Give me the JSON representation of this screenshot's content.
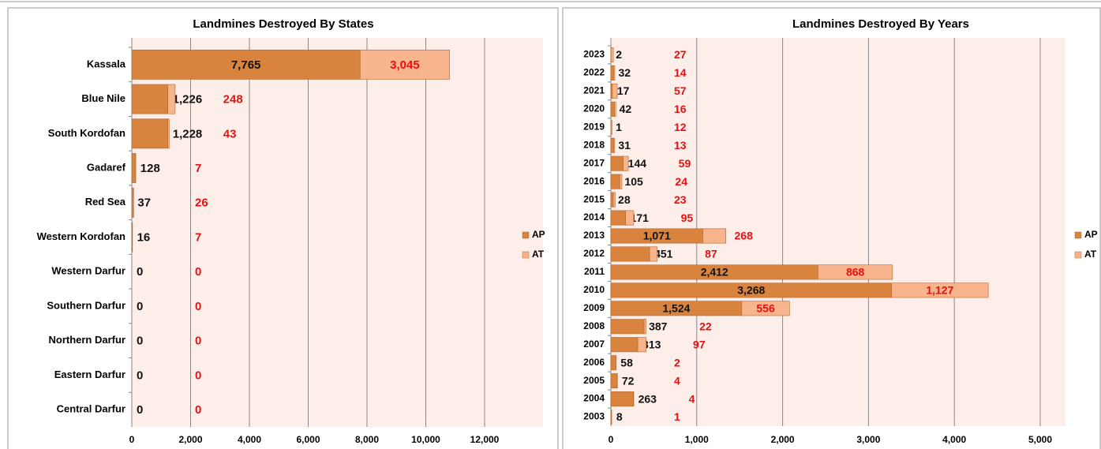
{
  "chart_data": [
    {
      "type": "stacked_bar_h",
      "title": "Landmines  Destroyed By States",
      "categories": [
        "Kassala",
        "Blue Nile",
        "South Kordofan",
        "Gadaref",
        "Red Sea",
        "Western Kordofan",
        "Western Darfur",
        "Southern Darfur",
        "Northern Darfur",
        "Eastern Darfur",
        "Central Darfur"
      ],
      "series": [
        {
          "name": "AP",
          "color": "#d9843e",
          "values": [
            7765,
            1226,
            1228,
            128,
            37,
            16,
            0,
            0,
            0,
            0,
            0
          ],
          "value_labels": [
            "7,765",
            "1,226",
            "1,228",
            "128",
            "37",
            "16",
            "0",
            "0",
            "0",
            "0",
            "0"
          ]
        },
        {
          "name": "AT",
          "color": "#f8b48c",
          "values": [
            3045,
            248,
            43,
            7,
            26,
            7,
            0,
            0,
            0,
            0,
            0
          ],
          "value_labels": [
            "3,045",
            "248",
            "43",
            "7",
            "26",
            "7",
            "0",
            "0",
            "0",
            "0",
            "0"
          ]
        }
      ],
      "xlim": [
        0,
        12000
      ],
      "xticks": [
        0,
        {
          "value": 2000,
          "label": "2,000"
        },
        {
          "value": 4000,
          "label": "4,000"
        },
        {
          "value": 6000,
          "label": "6,000"
        },
        {
          "value": 8000,
          "label": "8,000"
        },
        {
          "value": 10000,
          "label": "10,000"
        },
        {
          "value": 12000,
          "label": "12,000"
        }
      ],
      "grid": true,
      "legend": "right"
    },
    {
      "type": "stacked_bar_h",
      "title": "Landmines  Destroyed By Years",
      "categories": [
        "2023",
        "2022",
        "2021",
        "2020",
        "2019",
        "2018",
        "2017",
        "2016",
        "2015",
        "2014",
        "2013",
        "2012",
        "2011",
        "2010",
        "2009",
        "2008",
        "2007",
        "2006",
        "2005",
        "2004",
        "2003"
      ],
      "series": [
        {
          "name": "AP",
          "color": "#d9843e",
          "values": [
            2,
            32,
            17,
            42,
            1,
            31,
            144,
            105,
            28,
            171,
            1071,
            451,
            2412,
            3268,
            1524,
            387,
            313,
            58,
            72,
            263,
            8
          ],
          "value_labels": [
            "2",
            "32",
            "17",
            "42",
            "1",
            "31",
            "144",
            "105",
            "28",
            "171",
            "1,071",
            "451",
            "2,412",
            "3,268",
            "1,524",
            "387",
            "313",
            "58",
            "72",
            "263",
            "8"
          ]
        },
        {
          "name": "AT",
          "color": "#f8b48c",
          "values": [
            27,
            14,
            57,
            16,
            12,
            13,
            59,
            24,
            23,
            95,
            268,
            87,
            868,
            1127,
            556,
            22,
            97,
            2,
            4,
            4,
            1
          ],
          "value_labels": [
            "27",
            "14",
            "57",
            "16",
            "12",
            "13",
            "59",
            "24",
            "23",
            "95",
            "268",
            "87",
            "868",
            "1,127",
            "556",
            "22",
            "97",
            "2",
            "4",
            "4",
            "1"
          ]
        }
      ],
      "xlim": [
        0,
        5000
      ],
      "xticks": [
        0,
        {
          "value": 1000,
          "label": "1,000"
        },
        {
          "value": 2000,
          "label": "2,000"
        },
        {
          "value": 3000,
          "label": "3,000"
        },
        {
          "value": 4000,
          "label": "4,000"
        },
        {
          "value": 5000,
          "label": "5,000"
        }
      ],
      "grid": true,
      "legend": "right"
    }
  ]
}
